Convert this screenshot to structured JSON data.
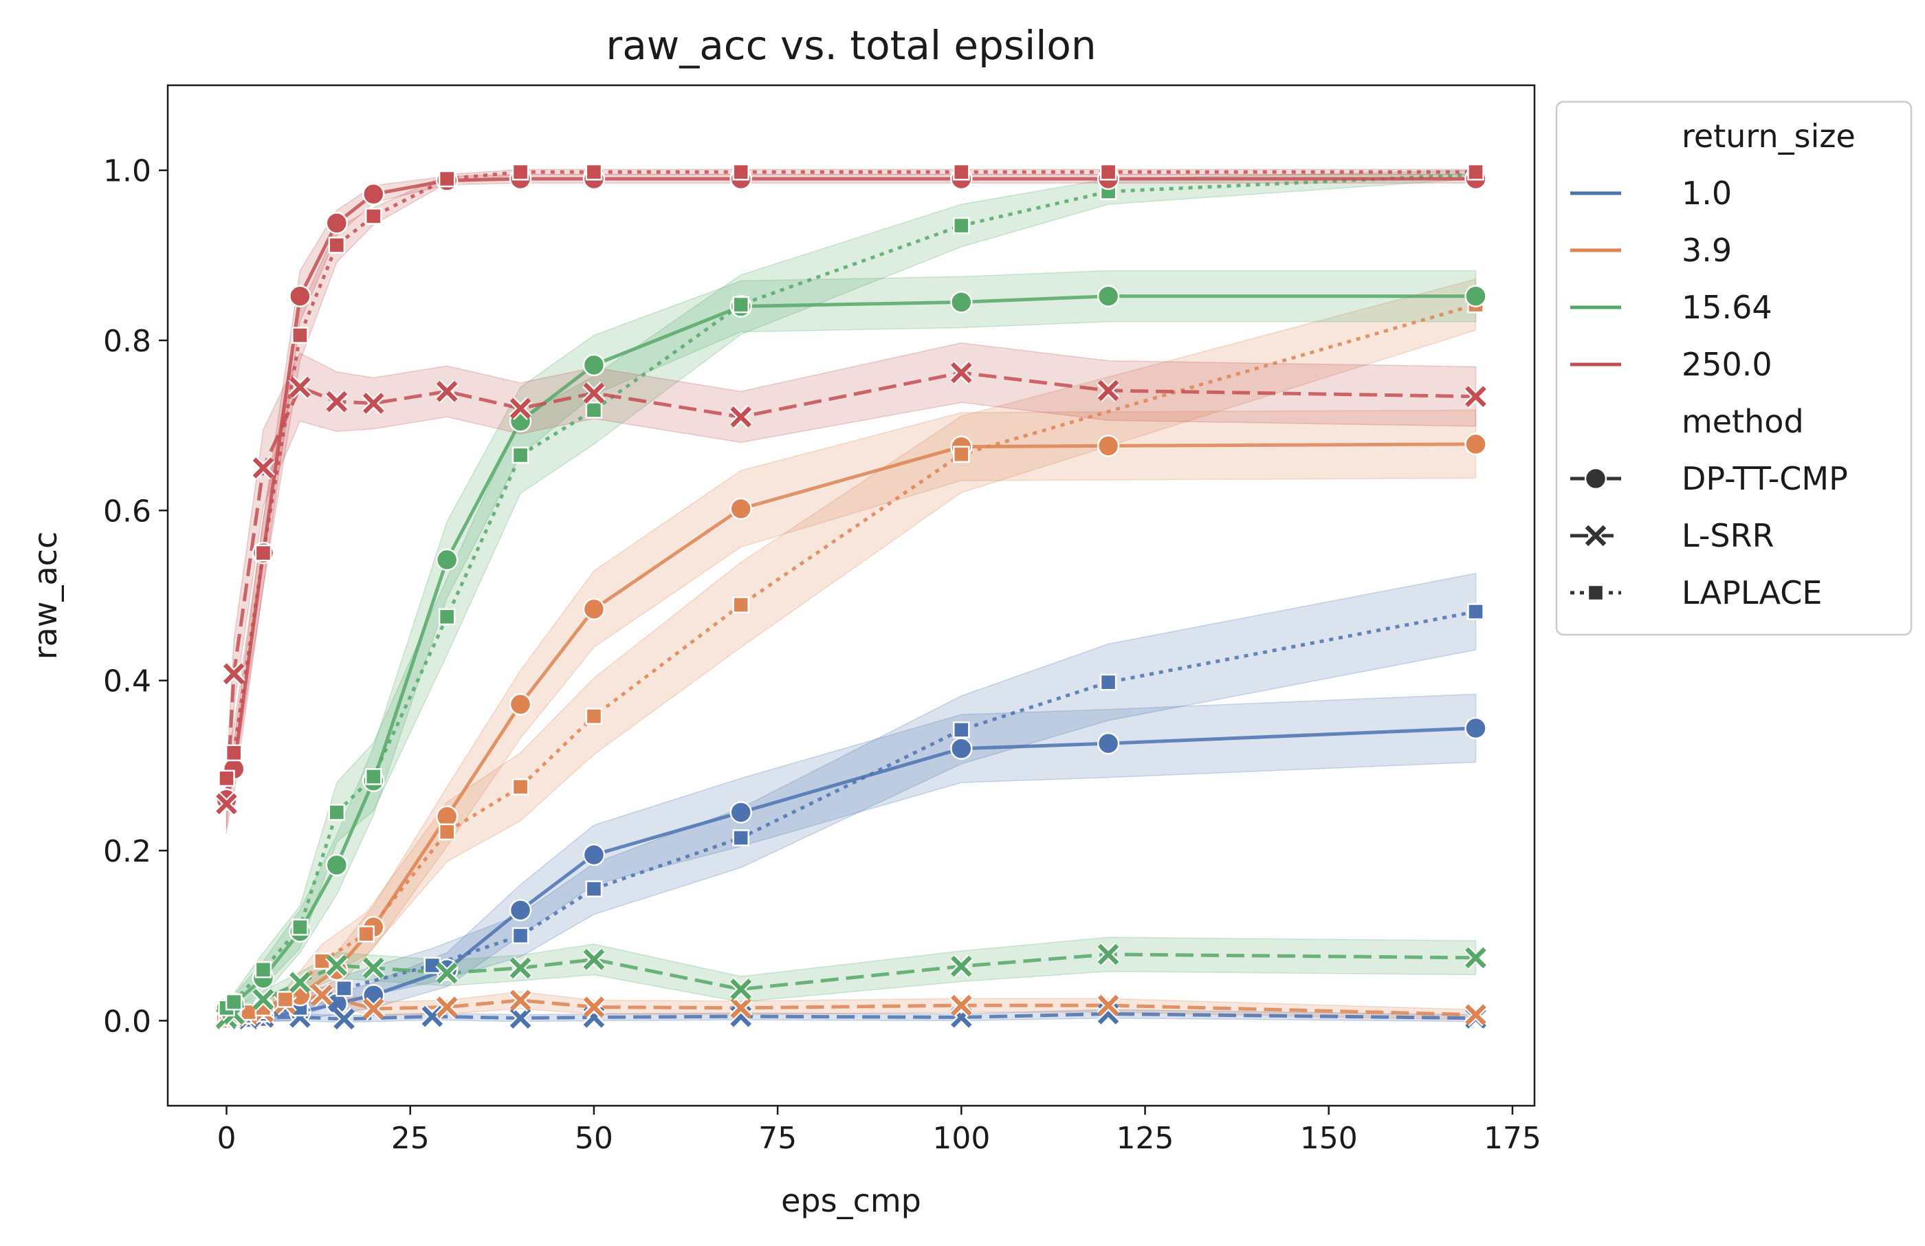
{
  "chart_data": {
    "type": "line",
    "title": "raw_acc vs. total epsilon",
    "xlabel": "eps_cmp",
    "ylabel": "raw_acc",
    "xlim": [
      -8,
      178
    ],
    "ylim": [
      -0.1,
      1.1
    ],
    "x_ticks": [
      0,
      25,
      50,
      75,
      100,
      125,
      150,
      175
    ],
    "x_tick_labels": [
      "0",
      "25",
      "50",
      "75",
      "100",
      "125",
      "150",
      "175"
    ],
    "y_ticks": [
      0.0,
      0.2,
      0.4,
      0.6,
      0.8,
      1.0
    ],
    "y_tick_labels": [
      "0.0",
      "0.2",
      "0.4",
      "0.6",
      "0.8",
      "1.0"
    ],
    "grid": false,
    "legend_placement": "outside-right-top",
    "legend": {
      "hue_title": "return_size",
      "style_title": "method",
      "hue_entries": [
        {
          "label": "1.0",
          "color": "#4c72b0"
        },
        {
          "label": "3.9",
          "color": "#dd8452"
        },
        {
          "label": "15.64",
          "color": "#55a868"
        },
        {
          "label": "250.0",
          "color": "#c44e52"
        }
      ],
      "style_entries": [
        {
          "label": "DP-TT-CMP",
          "marker": "circle",
          "dash": "solid"
        },
        {
          "label": "L-SRR",
          "marker": "x",
          "dash": "dashed"
        },
        {
          "label": "LAPLACE",
          "marker": "square",
          "dash": "dotted"
        }
      ],
      "style_color": "#333333"
    },
    "series": [
      {
        "return_size": "1.0",
        "method": "DP-TT-CMP",
        "color": "#4c72b0",
        "marker": "circle",
        "dash": "solid",
        "x": [
          0,
          1,
          3,
          5,
          10,
          15,
          20,
          30,
          40,
          50,
          70,
          100,
          120,
          170
        ],
        "y": [
          0.002,
          0.003,
          0.004,
          0.005,
          0.01,
          0.02,
          0.03,
          0.06,
          0.13,
          0.195,
          0.245,
          0.32,
          0.326,
          0.344
        ],
        "band": [
          0.005,
          0.005,
          0.005,
          0.006,
          0.01,
          0.012,
          0.015,
          0.02,
          0.03,
          0.035,
          0.04,
          0.04,
          0.04,
          0.04
        ]
      },
      {
        "return_size": "1.0",
        "method": "L-SRR",
        "color": "#4c72b0",
        "marker": "x",
        "dash": "dashed",
        "x": [
          0,
          1,
          3,
          5,
          10,
          16,
          28,
          40,
          50,
          70,
          100,
          120,
          170
        ],
        "y": [
          0.002,
          0.003,
          0.002,
          0.004,
          0.004,
          0.002,
          0.005,
          0.003,
          0.004,
          0.005,
          0.004,
          0.008,
          0.003
        ],
        "band": [
          0.004,
          0.004,
          0.004,
          0.004,
          0.004,
          0.004,
          0.004,
          0.004,
          0.004,
          0.004,
          0.004,
          0.005,
          0.004
        ]
      },
      {
        "return_size": "1.0",
        "method": "LAPLACE",
        "color": "#4c72b0",
        "marker": "square",
        "dash": "dotted",
        "x": [
          0,
          1,
          3,
          5,
          10,
          16,
          28,
          40,
          50,
          70,
          100,
          120,
          170
        ],
        "y": [
          0.002,
          0.004,
          0.006,
          0.008,
          0.015,
          0.038,
          0.065,
          0.1,
          0.155,
          0.215,
          0.342,
          0.398,
          0.481
        ],
        "band": [
          0.004,
          0.005,
          0.006,
          0.008,
          0.01,
          0.015,
          0.02,
          0.025,
          0.03,
          0.035,
          0.04,
          0.045,
          0.045
        ]
      },
      {
        "return_size": "3.9",
        "method": "DP-TT-CMP",
        "color": "#dd8452",
        "marker": "circle",
        "dash": "solid",
        "x": [
          0,
          1,
          5,
          10,
          15,
          20,
          30,
          40,
          50,
          70,
          100,
          120,
          170
        ],
        "y": [
          0.003,
          0.005,
          0.015,
          0.03,
          0.06,
          0.11,
          0.24,
          0.372,
          0.484,
          0.602,
          0.675,
          0.676,
          0.678
        ],
        "band": [
          0.005,
          0.006,
          0.01,
          0.015,
          0.02,
          0.025,
          0.035,
          0.04,
          0.045,
          0.045,
          0.04,
          0.04,
          0.04
        ]
      },
      {
        "return_size": "3.9",
        "method": "L-SRR",
        "color": "#dd8452",
        "marker": "x",
        "dash": "dashed",
        "x": [
          0,
          1,
          3,
          5,
          8,
          13,
          20,
          30,
          40,
          50,
          70,
          100,
          120,
          170
        ],
        "y": [
          0.003,
          0.005,
          0.007,
          0.01,
          0.02,
          0.03,
          0.014,
          0.016,
          0.024,
          0.016,
          0.015,
          0.018,
          0.018,
          0.007
        ],
        "band": [
          0.005,
          0.005,
          0.006,
          0.007,
          0.008,
          0.01,
          0.008,
          0.008,
          0.01,
          0.008,
          0.008,
          0.008,
          0.008,
          0.006
        ]
      },
      {
        "return_size": "3.9",
        "method": "LAPLACE",
        "color": "#dd8452",
        "marker": "square",
        "dash": "dotted",
        "x": [
          0,
          1,
          3,
          5,
          8,
          13,
          19,
          30,
          40,
          50,
          70,
          100,
          170
        ],
        "y": [
          0.003,
          0.006,
          0.01,
          0.015,
          0.025,
          0.07,
          0.102,
          0.222,
          0.275,
          0.358,
          0.489,
          0.666,
          0.842
        ],
        "band": [
          0.005,
          0.006,
          0.008,
          0.01,
          0.012,
          0.02,
          0.025,
          0.035,
          0.04,
          0.045,
          0.05,
          0.045,
          0.03
        ]
      },
      {
        "return_size": "15.64",
        "method": "DP-TT-CMP",
        "color": "#55a868",
        "marker": "circle",
        "dash": "solid",
        "x": [
          0,
          1,
          5,
          10,
          15,
          20,
          30,
          40,
          50,
          70,
          100,
          120,
          170
        ],
        "y": [
          0.015,
          0.02,
          0.05,
          0.105,
          0.183,
          0.282,
          0.542,
          0.705,
          0.771,
          0.84,
          0.845,
          0.852,
          0.852
        ],
        "band": [
          0.008,
          0.01,
          0.02,
          0.025,
          0.035,
          0.04,
          0.045,
          0.04,
          0.035,
          0.03,
          0.03,
          0.03,
          0.03
        ]
      },
      {
        "return_size": "15.64",
        "method": "L-SRR",
        "color": "#55a868",
        "marker": "x",
        "dash": "dashed",
        "x": [
          0,
          1,
          5,
          10,
          15,
          20,
          30,
          40,
          50,
          70,
          100,
          120,
          170
        ],
        "y": [
          0.003,
          0.008,
          0.025,
          0.045,
          0.065,
          0.062,
          0.056,
          0.062,
          0.072,
          0.037,
          0.064,
          0.078,
          0.074
        ],
        "band": [
          0.005,
          0.006,
          0.01,
          0.012,
          0.015,
          0.015,
          0.015,
          0.015,
          0.018,
          0.015,
          0.018,
          0.02,
          0.02
        ]
      },
      {
        "return_size": "15.64",
        "method": "LAPLACE",
        "color": "#55a868",
        "marker": "square",
        "dash": "dotted",
        "x": [
          0,
          1,
          5,
          10,
          15,
          20,
          30,
          40,
          50,
          70,
          100,
          120,
          170
        ],
        "y": [
          0.015,
          0.022,
          0.06,
          0.11,
          0.245,
          0.287,
          0.475,
          0.665,
          0.718,
          0.842,
          0.935,
          0.975,
          0.995
        ],
        "band": [
          0.008,
          0.01,
          0.02,
          0.025,
          0.035,
          0.04,
          0.045,
          0.045,
          0.04,
          0.035,
          0.025,
          0.015,
          0.005
        ]
      },
      {
        "return_size": "250.0",
        "method": "DP-TT-CMP",
        "color": "#c44e52",
        "marker": "circle",
        "dash": "solid",
        "x": [
          0,
          1,
          5,
          10,
          15,
          20,
          30,
          40,
          50,
          70,
          100,
          120,
          170
        ],
        "y": [
          0.26,
          0.296,
          0.55,
          0.852,
          0.938,
          0.972,
          0.988,
          0.99,
          0.99,
          0.99,
          0.99,
          0.99,
          0.99
        ],
        "band": [
          0.035,
          0.03,
          0.04,
          0.03,
          0.015,
          0.01,
          0.005,
          0.005,
          0.005,
          0.005,
          0.005,
          0.005,
          0.005
        ]
      },
      {
        "return_size": "250.0",
        "method": "L-SRR",
        "color": "#c44e52",
        "marker": "x",
        "dash": "dashed",
        "x": [
          0,
          1,
          5,
          10,
          15,
          20,
          30,
          40,
          50,
          70,
          100,
          120,
          170
        ],
        "y": [
          0.255,
          0.408,
          0.65,
          0.745,
          0.728,
          0.726,
          0.74,
          0.72,
          0.738,
          0.71,
          0.762,
          0.741,
          0.734
        ],
        "band": [
          0.035,
          0.04,
          0.045,
          0.04,
          0.035,
          0.03,
          0.03,
          0.03,
          0.03,
          0.03,
          0.035,
          0.035,
          0.035
        ]
      },
      {
        "return_size": "250.0",
        "method": "LAPLACE",
        "color": "#c44e52",
        "marker": "square",
        "dash": "dotted",
        "x": [
          0,
          1,
          5,
          10,
          15,
          20,
          30,
          40,
          50,
          70,
          100,
          120,
          170
        ],
        "y": [
          0.285,
          0.315,
          0.55,
          0.806,
          0.912,
          0.946,
          0.99,
          0.998,
          0.998,
          0.998,
          0.998,
          0.998,
          0.998
        ],
        "band": [
          0.035,
          0.03,
          0.04,
          0.03,
          0.02,
          0.01,
          0.005,
          0.003,
          0.003,
          0.003,
          0.003,
          0.003,
          0.003
        ]
      }
    ]
  }
}
